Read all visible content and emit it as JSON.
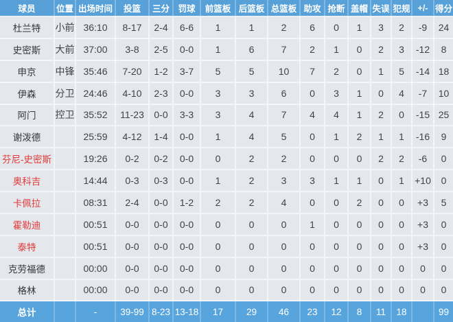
{
  "colors": {
    "header_bg": "#58a1d8",
    "total_row_bg": "#58a4dc",
    "row_bg": "#e4e8ed",
    "inactive_player_red": "#e03a3a",
    "header_text": "#ffffff",
    "cell_text": "#3e4347"
  },
  "chart_data": {
    "type": "table",
    "columns": [
      "球员",
      "位置",
      "出场时间",
      "投篮",
      "三分",
      "罚球",
      "前篮板",
      "后篮板",
      "总篮板",
      "助攻",
      "抢断",
      "盖帽",
      "失误",
      "犯规",
      "+/-",
      "得分"
    ],
    "rows": [
      {
        "player": "杜兰特",
        "red": false,
        "values": [
          "小前",
          "36:10",
          "8-17",
          "2-4",
          "6-6",
          "1",
          "1",
          "2",
          "6",
          "0",
          "1",
          "3",
          "2",
          "-9",
          "24"
        ]
      },
      {
        "player": "史密斯",
        "red": false,
        "values": [
          "大前",
          "37:00",
          "3-8",
          "2-5",
          "0-0",
          "1",
          "6",
          "7",
          "2",
          "1",
          "0",
          "2",
          "3",
          "-12",
          "8"
        ]
      },
      {
        "player": "申京",
        "red": false,
        "values": [
          "中锋",
          "35:46",
          "7-20",
          "1-2",
          "3-7",
          "5",
          "5",
          "10",
          "7",
          "2",
          "0",
          "1",
          "5",
          "-14",
          "18"
        ]
      },
      {
        "player": "伊森",
        "red": false,
        "values": [
          "分卫",
          "24:46",
          "4-10",
          "2-3",
          "0-0",
          "3",
          "3",
          "6",
          "0",
          "3",
          "1",
          "0",
          "4",
          "-7",
          "10"
        ]
      },
      {
        "player": "阿门",
        "red": false,
        "values": [
          "控卫",
          "35:52",
          "11-23",
          "0-0",
          "3-3",
          "3",
          "4",
          "7",
          "4",
          "4",
          "1",
          "2",
          "0",
          "-15",
          "25"
        ]
      },
      {
        "player": "谢泼德",
        "red": false,
        "values": [
          "",
          "25:59",
          "4-12",
          "1-4",
          "0-0",
          "1",
          "4",
          "5",
          "0",
          "1",
          "2",
          "1",
          "1",
          "-16",
          "9"
        ]
      },
      {
        "player": "芬尼-史密斯",
        "red": true,
        "values": [
          "",
          "19:26",
          "0-2",
          "0-2",
          "0-0",
          "0",
          "2",
          "2",
          "0",
          "0",
          "0",
          "2",
          "2",
          "-6",
          "0"
        ]
      },
      {
        "player": "奥科吉",
        "red": true,
        "values": [
          "",
          "14:44",
          "0-3",
          "0-3",
          "0-0",
          "1",
          "2",
          "3",
          "3",
          "1",
          "1",
          "0",
          "1",
          "+10",
          "0"
        ]
      },
      {
        "player": "卡佩拉",
        "red": true,
        "values": [
          "",
          "08:31",
          "2-4",
          "0-0",
          "1-2",
          "2",
          "2",
          "4",
          "0",
          "0",
          "2",
          "0",
          "0",
          "+3",
          "5"
        ]
      },
      {
        "player": "霍勒迪",
        "red": true,
        "values": [
          "",
          "00:51",
          "0-0",
          "0-0",
          "0-0",
          "0",
          "0",
          "0",
          "1",
          "0",
          "0",
          "0",
          "0",
          "+3",
          "0"
        ]
      },
      {
        "player": "泰特",
        "red": true,
        "values": [
          "",
          "00:51",
          "0-0",
          "0-0",
          "0-0",
          "0",
          "0",
          "0",
          "0",
          "0",
          "0",
          "0",
          "0",
          "+3",
          "0"
        ]
      },
      {
        "player": "克劳福德",
        "red": false,
        "values": [
          "",
          "00:00",
          "0-0",
          "0-0",
          "0-0",
          "0",
          "0",
          "0",
          "0",
          "0",
          "0",
          "0",
          "0",
          "0",
          "0"
        ]
      },
      {
        "player": "格林",
        "red": false,
        "values": [
          "",
          "00:00",
          "0-0",
          "0-0",
          "0-0",
          "0",
          "0",
          "0",
          "0",
          "0",
          "0",
          "0",
          "0",
          "0",
          "0"
        ]
      }
    ],
    "total_row": {
      "player": "总计",
      "values": [
        "",
        "-",
        "39-99",
        "8-23",
        "13-18",
        "17",
        "29",
        "46",
        "23",
        "12",
        "8",
        "11",
        "18",
        "",
        "99"
      ]
    }
  }
}
